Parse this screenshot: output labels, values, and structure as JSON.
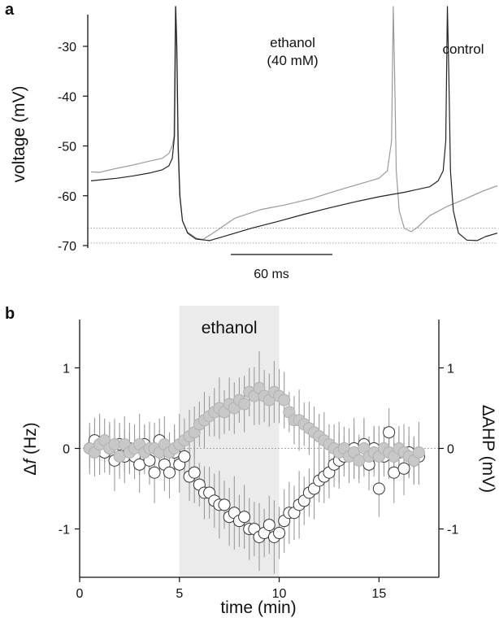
{
  "figure": {
    "panel_a_label": "a",
    "panel_b_label": "b"
  },
  "colors": {
    "control": "#222222",
    "ethanol": "#9a9a9a",
    "open_marker_fill": "#ffffff",
    "filled_marker_fill": "#c8c8c8",
    "shade": "#ebebeb",
    "errorbar": "#9a9a9a"
  },
  "chart_data": [
    {
      "type": "line",
      "panel": "a",
      "ylabel": "voltage (mV)",
      "xlabel": "",
      "yticks": [
        -30,
        -40,
        -50,
        -60,
        -70
      ],
      "ylim": [
        -70,
        -22
      ],
      "x_unit": "ms",
      "xlim": [
        0,
        240
      ],
      "scalebar": {
        "label": "60 ms",
        "length_ms": 60
      },
      "reference_levels_mV": [
        -66.5,
        -69.5
      ],
      "series": [
        {
          "name": "control",
          "label_lines": [
            "control"
          ],
          "points": [
            [
              0,
              -57
            ],
            [
              6,
              -56.8
            ],
            [
              15,
              -56.5
            ],
            [
              25,
              -56
            ],
            [
              35,
              -55.4
            ],
            [
              42,
              -54.8
            ],
            [
              46,
              -54
            ],
            [
              48,
              -52.5
            ],
            [
              49.3,
              -48
            ],
            [
              50,
              -22
            ],
            [
              50.7,
              -30
            ],
            [
              51.5,
              -50
            ],
            [
              52.5,
              -60
            ],
            [
              54,
              -65
            ],
            [
              57,
              -67.5
            ],
            [
              62,
              -68.7
            ],
            [
              70,
              -69
            ],
            [
              80,
              -68
            ],
            [
              95,
              -66.5
            ],
            [
              110,
              -65.2
            ],
            [
              125,
              -63.8
            ],
            [
              140,
              -62.5
            ],
            [
              155,
              -61.3
            ],
            [
              170,
              -60.2
            ],
            [
              185,
              -59.3
            ],
            [
              200,
              -58.2
            ],
            [
              205,
              -57
            ],
            [
              208,
              -55
            ],
            [
              209.5,
              -49
            ],
            [
              210.5,
              -22
            ],
            [
              211.3,
              -35
            ],
            [
              212.3,
              -55
            ],
            [
              214,
              -63
            ],
            [
              217,
              -67.5
            ],
            [
              222,
              -68.9
            ],
            [
              228,
              -69
            ],
            [
              233,
              -68.2
            ],
            [
              240,
              -67.5
            ]
          ]
        },
        {
          "name": "ethanol",
          "label_lines": [
            "ethanol",
            "(40 mM)"
          ],
          "points": [
            [
              0,
              -55.2
            ],
            [
              5,
              -55.3
            ],
            [
              15,
              -54.5
            ],
            [
              25,
              -53.8
            ],
            [
              35,
              -53
            ],
            [
              42,
              -52.5
            ],
            [
              46,
              -51.5
            ],
            [
              48,
              -50
            ],
            [
              49,
              -48
            ],
            [
              49.8,
              -22
            ],
            [
              50.5,
              -30
            ],
            [
              51.3,
              -50
            ],
            [
              52.3,
              -60
            ],
            [
              54,
              -65
            ],
            [
              57,
              -67.3
            ],
            [
              62,
              -68.5
            ],
            [
              66,
              -68.8
            ],
            [
              72,
              -67.5
            ],
            [
              85,
              -64.5
            ],
            [
              100,
              -62.8
            ],
            [
              115,
              -61.8
            ],
            [
              130,
              -60.6
            ],
            [
              145,
              -59
            ],
            [
              160,
              -57.5
            ],
            [
              170,
              -56.5
            ],
            [
              175,
              -55
            ],
            [
              177.5,
              -49
            ],
            [
              178.5,
              -22
            ],
            [
              179.3,
              -35
            ],
            [
              180.3,
              -55
            ],
            [
              182,
              -63
            ],
            [
              185,
              -66.5
            ],
            [
              189,
              -67.2
            ],
            [
              193,
              -66.3
            ],
            [
              200,
              -64
            ],
            [
              210,
              -62.2
            ],
            [
              220,
              -60.8
            ],
            [
              232,
              -59
            ],
            [
              240,
              -58
            ]
          ]
        }
      ]
    },
    {
      "type": "scatter",
      "panel": "b",
      "xlabel": "time (min)",
      "ylabel_left": "Δf (Hz)",
      "ylabel_left_base": "Δ",
      "ylabel_left_var": "f",
      "ylabel_left_unit": " (Hz)",
      "ylabel_right": "ΔAHP (mV)",
      "xlim": [
        0,
        18
      ],
      "ylim": [
        -1.6,
        1.6
      ],
      "xticks": [
        0,
        5,
        10,
        15
      ],
      "yticks_left": [
        1,
        0,
        -1
      ],
      "yticks_right": [
        1,
        0,
        -1
      ],
      "shaded_region": {
        "label": "ethanol",
        "x_start": 5,
        "x_end": 10
      },
      "series": [
        {
          "name": "Δf",
          "marker": "open-circle",
          "points": [
            [
              0.5,
              0
            ],
            [
              0.75,
              0.1
            ],
            [
              1,
              0.05
            ],
            [
              1.25,
              -0.05
            ],
            [
              1.5,
              0
            ],
            [
              1.75,
              -0.15
            ],
            [
              2,
              0.05
            ],
            [
              2.25,
              -0.1
            ],
            [
              2.5,
              0
            ],
            [
              2.75,
              -0.1
            ],
            [
              3,
              -0.2
            ],
            [
              3.25,
              0.05
            ],
            [
              3.5,
              -0.15
            ],
            [
              3.75,
              -0.3
            ],
            [
              4,
              0.1
            ],
            [
              4.25,
              -0.2
            ],
            [
              4.5,
              -0.3
            ],
            [
              4.75,
              -0.05
            ],
            [
              5,
              -0.2
            ],
            [
              5.25,
              -0.1
            ],
            [
              5.5,
              -0.35
            ],
            [
              5.75,
              -0.3
            ],
            [
              6,
              -0.45
            ],
            [
              6.25,
              -0.55
            ],
            [
              6.5,
              -0.55
            ],
            [
              6.75,
              -0.65
            ],
            [
              7,
              -0.7
            ],
            [
              7.25,
              -0.7
            ],
            [
              7.5,
              -0.85
            ],
            [
              7.75,
              -0.8
            ],
            [
              8,
              -0.9
            ],
            [
              8.25,
              -0.85
            ],
            [
              8.5,
              -1
            ],
            [
              8.75,
              -1
            ],
            [
              9,
              -1.1
            ],
            [
              9.25,
              -1.05
            ],
            [
              9.5,
              -0.95
            ],
            [
              9.75,
              -1.1
            ],
            [
              10,
              -1.05
            ],
            [
              10.25,
              -0.9
            ],
            [
              10.5,
              -0.8
            ],
            [
              10.75,
              -0.8
            ],
            [
              11,
              -0.7
            ],
            [
              11.25,
              -0.65
            ],
            [
              11.5,
              -0.55
            ],
            [
              11.75,
              -0.5
            ],
            [
              12,
              -0.4
            ],
            [
              12.25,
              -0.35
            ],
            [
              12.5,
              -0.3
            ],
            [
              12.75,
              -0.2
            ],
            [
              13,
              -0.15
            ],
            [
              13.25,
              -0.1
            ],
            [
              13.5,
              -0.05
            ],
            [
              13.75,
              0
            ],
            [
              14,
              -0.1
            ],
            [
              14.25,
              0.05
            ],
            [
              14.5,
              -0.2
            ],
            [
              14.75,
              0
            ],
            [
              15,
              -0.5
            ],
            [
              15.25,
              -0.1
            ],
            [
              15.5,
              0.2
            ],
            [
              15.75,
              -0.3
            ],
            [
              16,
              -0.05
            ],
            [
              16.25,
              -0.25
            ],
            [
              16.5,
              -0.05
            ],
            [
              16.75,
              -0.15
            ],
            [
              17,
              -0.1
            ]
          ]
        },
        {
          "name": "ΔAHP",
          "marker": "filled-gray-circle",
          "points": [
            [
              0.5,
              0
            ],
            [
              0.75,
              -0.05
            ],
            [
              1,
              0.05
            ],
            [
              1.25,
              0.1
            ],
            [
              1.5,
              0
            ],
            [
              1.75,
              0.05
            ],
            [
              2,
              -0.1
            ],
            [
              2.25,
              0.05
            ],
            [
              2.5,
              -0.05
            ],
            [
              2.75,
              0
            ],
            [
              3,
              0.05
            ],
            [
              3.25,
              -0.05
            ],
            [
              3.5,
              0
            ],
            [
              3.75,
              0
            ],
            [
              4,
              -0.05
            ],
            [
              4.25,
              0.05
            ],
            [
              4.5,
              -0.05
            ],
            [
              4.75,
              0
            ],
            [
              5,
              0.05
            ],
            [
              5.25,
              0.1
            ],
            [
              5.5,
              0.15
            ],
            [
              5.75,
              0.2
            ],
            [
              6,
              0.3
            ],
            [
              6.25,
              0.35
            ],
            [
              6.5,
              0.4
            ],
            [
              6.75,
              0.45
            ],
            [
              7,
              0.5
            ],
            [
              7.25,
              0.45
            ],
            [
              7.5,
              0.55
            ],
            [
              7.75,
              0.5
            ],
            [
              8,
              0.6
            ],
            [
              8.25,
              0.55
            ],
            [
              8.5,
              0.7
            ],
            [
              8.75,
              0.65
            ],
            [
              9,
              0.75
            ],
            [
              9.25,
              0.65
            ],
            [
              9.5,
              0.6
            ],
            [
              9.75,
              0.7
            ],
            [
              10,
              0.65
            ],
            [
              10.25,
              0.6
            ],
            [
              10.5,
              0.45
            ],
            [
              10.75,
              0.35
            ],
            [
              11,
              0.35
            ],
            [
              11.25,
              0.3
            ],
            [
              11.5,
              0.25
            ],
            [
              11.75,
              0.2
            ],
            [
              12,
              0.15
            ],
            [
              12.25,
              0.1
            ],
            [
              12.5,
              0.05
            ],
            [
              12.75,
              0
            ],
            [
              13,
              -0.05
            ],
            [
              13.25,
              0
            ],
            [
              13.5,
              -0.1
            ],
            [
              13.75,
              -0.05
            ],
            [
              14,
              -0.15
            ],
            [
              14.25,
              0
            ],
            [
              14.5,
              -0.1
            ],
            [
              14.75,
              -0.05
            ],
            [
              15,
              -0.1
            ],
            [
              15.25,
              0
            ],
            [
              15.5,
              -0.05
            ],
            [
              15.75,
              -0.1
            ],
            [
              16,
              0
            ],
            [
              16.25,
              -0.05
            ],
            [
              16.5,
              -0.1
            ],
            [
              16.75,
              -0.15
            ],
            [
              17,
              -0.05
            ]
          ]
        }
      ]
    }
  ]
}
